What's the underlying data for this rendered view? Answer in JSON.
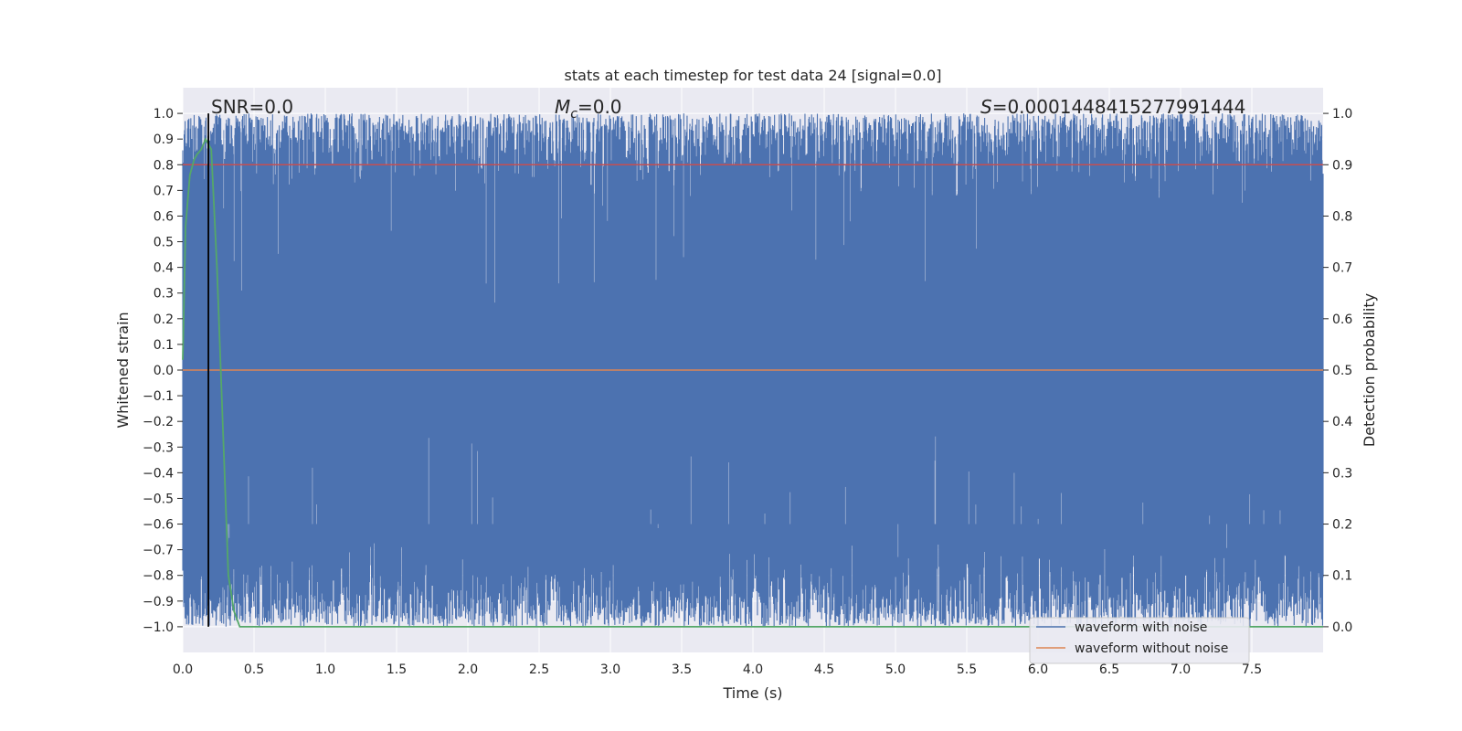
{
  "chart_data": {
    "type": "line",
    "title": "stats at each timestep for test data 24 [signal=0.0]",
    "xlabel": "Time (s)",
    "ylabel_left": "Whitened strain",
    "ylabel_right": "Detection probability",
    "xlim": [
      0.0,
      8.0
    ],
    "ylim_left": [
      -1.1,
      1.1
    ],
    "ylim_right": [
      -0.05,
      1.05
    ],
    "x_ticks": [
      0.0,
      0.5,
      1.0,
      1.5,
      2.0,
      2.5,
      3.0,
      3.5,
      4.0,
      4.5,
      5.0,
      5.5,
      6.0,
      6.5,
      7.0,
      7.5
    ],
    "x_tick_labels": [
      "0.0",
      "0.5",
      "1.0",
      "1.5",
      "2.0",
      "2.5",
      "3.0",
      "3.5",
      "4.0",
      "4.5",
      "5.0",
      "5.5",
      "6.0",
      "6.5",
      "7.0",
      "7.5"
    ],
    "y_ticks_left": [
      1.0,
      0.9,
      0.8,
      0.7,
      0.6,
      0.5,
      0.4,
      0.3,
      0.2,
      0.1,
      0.0,
      -0.1,
      -0.2,
      -0.3,
      -0.4,
      -0.5,
      -0.6,
      -0.7,
      -0.8,
      -0.9,
      -1.0
    ],
    "y_tick_labels_left": [
      "1.0",
      "0.9",
      "0.8",
      "0.7",
      "0.6",
      "0.5",
      "0.4",
      "0.3",
      "0.2",
      "0.1",
      "0.0",
      "−0.1",
      "−0.2",
      "−0.3",
      "−0.4",
      "−0.5",
      "−0.6",
      "−0.7",
      "−0.8",
      "−0.9",
      "−1.0"
    ],
    "y_ticks_right": [
      1.0,
      0.9,
      0.8,
      0.7,
      0.6,
      0.5,
      0.4,
      0.3,
      0.2,
      0.1,
      0.0
    ],
    "y_tick_labels_right": [
      "1.0",
      "0.9",
      "0.8",
      "0.7",
      "0.6",
      "0.5",
      "0.4",
      "0.3",
      "0.2",
      "0.1",
      "0.0"
    ],
    "grid": true,
    "annotations": {
      "snr": "SNR=0.0",
      "mc_symbol": "M",
      "mc_subscript": "c",
      "mc_value": "=0.0",
      "s_symbol": "S",
      "s_value": "=0.0001448415277991444"
    },
    "vline_x": 0.18,
    "series": [
      {
        "name": "waveform with noise",
        "color": "#4c72b0",
        "axis": "left",
        "description_values": "dense noise spanning roughly −1.0 to 1.0 over 0–8 s"
      },
      {
        "name": "waveform without noise",
        "color": "#dd8452",
        "axis": "left",
        "x": [
          0.0,
          8.0
        ],
        "y": [
          0.0,
          0.0
        ]
      },
      {
        "color": "#55a868",
        "axis": "right",
        "x": [
          0.0,
          0.02,
          0.05,
          0.08,
          0.1,
          0.13,
          0.16,
          0.2,
          0.24,
          0.28,
          0.32,
          0.36,
          0.4,
          0.5,
          1.0,
          2.0,
          4.0,
          6.0,
          8.0
        ],
        "y": [
          0.52,
          0.78,
          0.88,
          0.91,
          0.92,
          0.93,
          0.95,
          0.93,
          0.7,
          0.4,
          0.1,
          0.03,
          0.0,
          0.0,
          0.0,
          0.0,
          0.0,
          0.0,
          0.0
        ]
      },
      {
        "color": "#c44e52",
        "axis": "right",
        "x": [
          0.0,
          8.0
        ],
        "y": [
          0.9,
          0.9
        ]
      }
    ],
    "legend_placement": "lower-right",
    "colors": {
      "background": "#eaeaf2",
      "grid": "#ffffff",
      "vline": "#000000"
    }
  }
}
